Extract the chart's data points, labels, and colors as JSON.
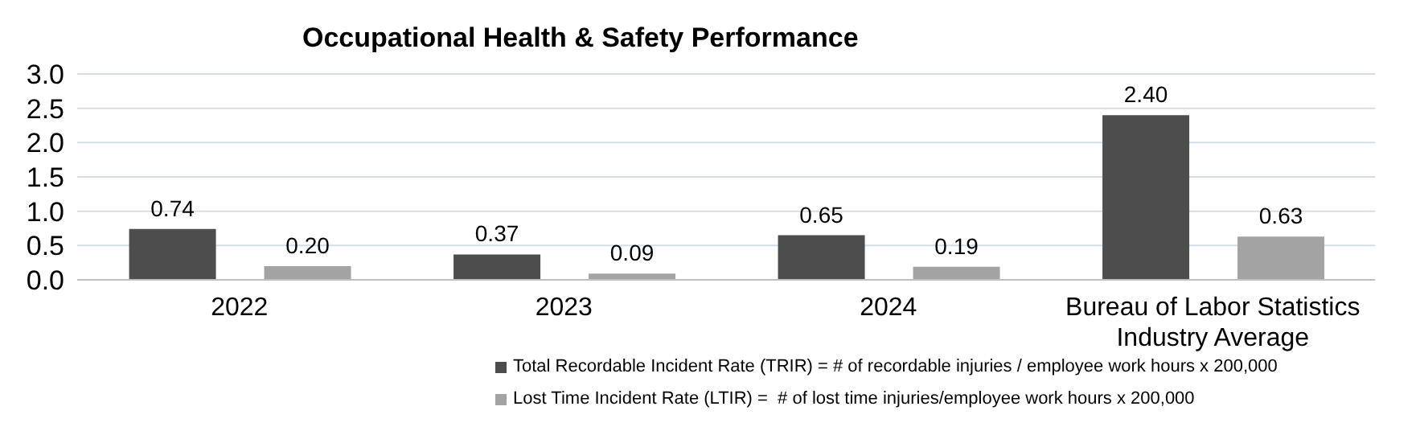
{
  "chart_data": {
    "type": "bar",
    "title": "Occupational Health & Safety Performance",
    "categories": [
      "2022",
      "2023",
      "2024",
      "Bureau of Labor Statistics Industry Average"
    ],
    "series": [
      {
        "name": "Total Recordable Incident Rate (TRIR) = # of recordable injuries / employee work hours x 200,000",
        "color": "#4d4d4d",
        "values": [
          0.74,
          0.37,
          0.65,
          2.4
        ],
        "value_labels": [
          "0.74",
          "0.37",
          "0.65",
          "2.40"
        ]
      },
      {
        "name": "Lost Time Incident Rate (LTIR) =  # of lost time injuries/employee work hours x 200,000",
        "color": "#a3a3a3",
        "values": [
          0.2,
          0.09,
          0.19,
          0.63
        ],
        "value_labels": [
          "0.20",
          "0.09",
          "0.19",
          "0.63"
        ]
      }
    ],
    "ylim": [
      0,
      3
    ],
    "yticks": [
      {
        "value": 0,
        "label": "0.0"
      },
      {
        "value": 0.5,
        "label": "0.5"
      },
      {
        "value": 1,
        "label": "1.0"
      },
      {
        "value": 1.5,
        "label": "1.5"
      },
      {
        "value": 2,
        "label": "2.0"
      },
      {
        "value": 2.5,
        "label": "2.5"
      },
      {
        "value": 3,
        "label": "3.0"
      }
    ],
    "grid": "y",
    "legend": "bottom"
  }
}
